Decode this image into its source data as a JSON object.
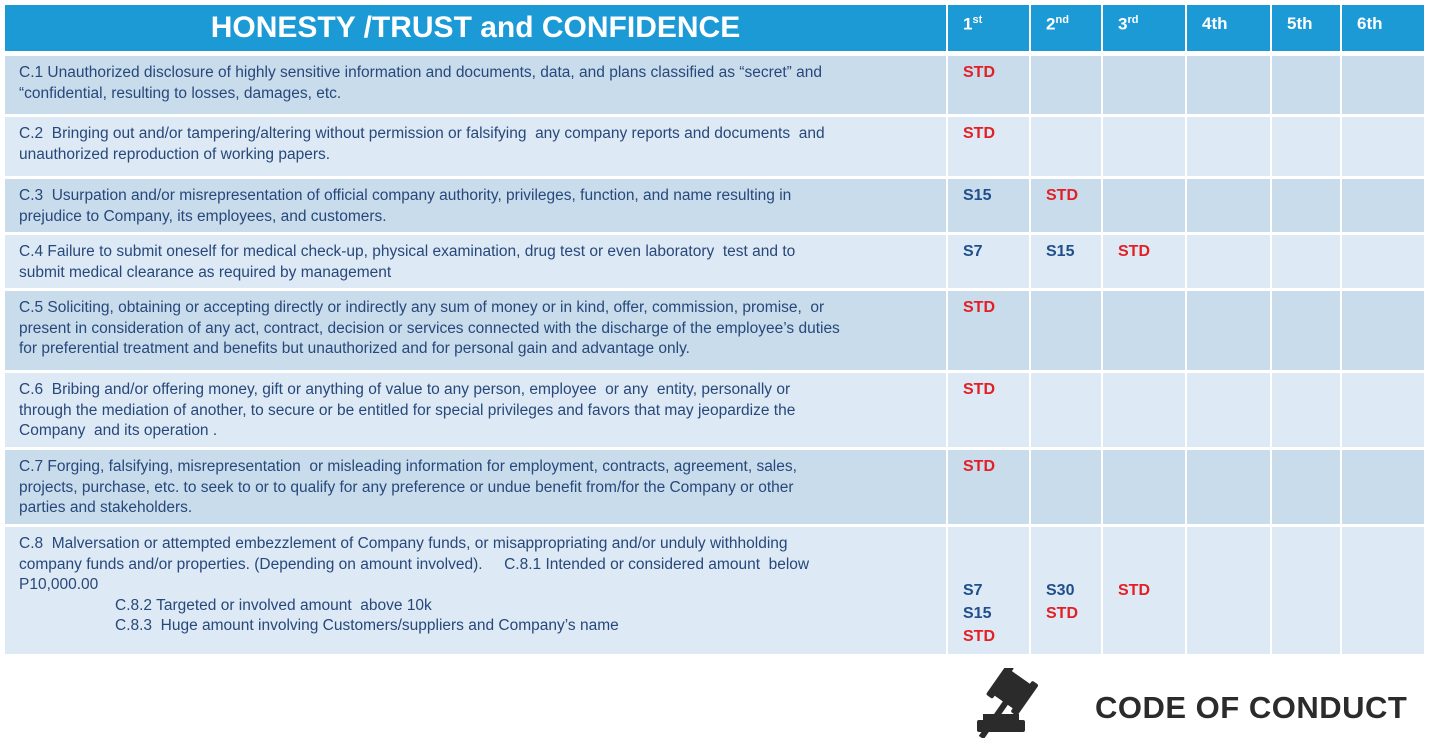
{
  "header": {
    "title": "HONESTY /TRUST and CONFIDENCE",
    "columns": [
      {
        "base": "1",
        "sup": "st"
      },
      {
        "base": "2",
        "sup": "nd"
      },
      {
        "base": "3",
        "sup": "rd"
      },
      {
        "base": "4th"
      },
      {
        "base": "5th"
      },
      {
        "base": "6th"
      }
    ]
  },
  "rows": [
    {
      "lines": [
        "C.1 Unauthorized disclosure of highly sensitive information and documents, data, and plans classified as “secret” and",
        "“confidential, resulting to losses, damages, etc."
      ],
      "cells": [
        [
          {
            "text": "STD",
            "color": "#e31e24"
          }
        ],
        [],
        [],
        [],
        [],
        []
      ]
    },
    {
      "lines": [
        "C.2  Bringing out and/or tampering/altering without permission or falsifying  any company reports and documents  and",
        "unauthorized reproduction of working papers."
      ],
      "cells": [
        [
          {
            "text": "STD",
            "color": "#e31e24"
          }
        ],
        [],
        [],
        [],
        [],
        []
      ]
    },
    {
      "lines": [
        "C.3  Usurpation and/or misrepresentation of official company authority, privileges, function, and name resulting in",
        "prejudice to Company, its employees, and customers."
      ],
      "cells": [
        [
          {
            "text": "S15",
            "color": "#1f4e8c"
          }
        ],
        [
          {
            "text": "STD",
            "color": "#e31e24"
          }
        ],
        [],
        [],
        [],
        []
      ]
    },
    {
      "lines": [
        "C.4 Failure to submit oneself for medical check-up, physical examination, drug test or even laboratory  test and to",
        "submit medical clearance as required by management"
      ],
      "cells": [
        [
          {
            "text": "S7",
            "color": "#1f4e8c"
          }
        ],
        [
          {
            "text": "S15",
            "color": "#1f4e8c"
          }
        ],
        [
          {
            "text": "STD",
            "color": "#e31e24"
          }
        ],
        [],
        [],
        []
      ]
    },
    {
      "lines": [
        "C.5 Soliciting, obtaining or accepting directly or indirectly any sum of money or in kind, offer, commission, promise,  or",
        "present in consideration of any act, contract, decision or services connected with the discharge of the employee’s duties",
        "for preferential treatment and benefits but unauthorized and for personal gain and advantage only."
      ],
      "cells": [
        [
          {
            "text": "STD",
            "color": "#e31e24"
          }
        ],
        [],
        [],
        [],
        [],
        []
      ]
    },
    {
      "lines": [
        "C.6  Bribing and/or offering money, gift or anything of value to any person, employee  or any  entity, personally or",
        "through the mediation of another, to secure or be entitled for special privileges and favors that may jeopardize the",
        "Company  and its operation ."
      ],
      "cells": [
        [
          {
            "text": "STD",
            "color": "#e31e24"
          }
        ],
        [],
        [],
        [],
        [],
        []
      ]
    },
    {
      "lines": [
        "C.7 Forging, falsifying, misrepresentation  or misleading information for employment, contracts, agreement, sales,",
        "projects, purchase, etc. to seek to or to qualify for any preference or undue benefit from/for the Company or other",
        "parties and stakeholders."
      ],
      "cells": [
        [
          {
            "text": "STD",
            "color": "#e31e24"
          }
        ],
        [],
        [],
        [],
        [],
        []
      ]
    },
    {
      "lines": [
        "C.8  Malversation or attempted embezzlement of Company funds, or misappropriating and/or unduly withholding",
        "company funds and/or properties. (Depending on amount involved).     C.8.1 Intended or considered amount  below",
        "P10,000.00"
      ],
      "sub": [
        "C.8.2 Targeted or involved amount  above 10k",
        "C.8.3  Huge amount involving Customers/suppliers and Company’s name"
      ],
      "cells": [
        [
          {
            "text": "S7",
            "color": "#1f4e8c"
          },
          {
            "text": "S15",
            "color": "#1f4e8c"
          },
          {
            "text": "STD",
            "color": "#e31e24"
          }
        ],
        [
          {
            "text": "S30",
            "color": "#1f4e8c"
          },
          {
            "text": "STD",
            "color": "#e31e24"
          }
        ],
        [
          {
            "text": "STD",
            "color": "#e31e24"
          }
        ],
        [],
        [],
        []
      ]
    }
  ],
  "footer": {
    "logo_text": "CODE OF CONDUCT"
  }
}
